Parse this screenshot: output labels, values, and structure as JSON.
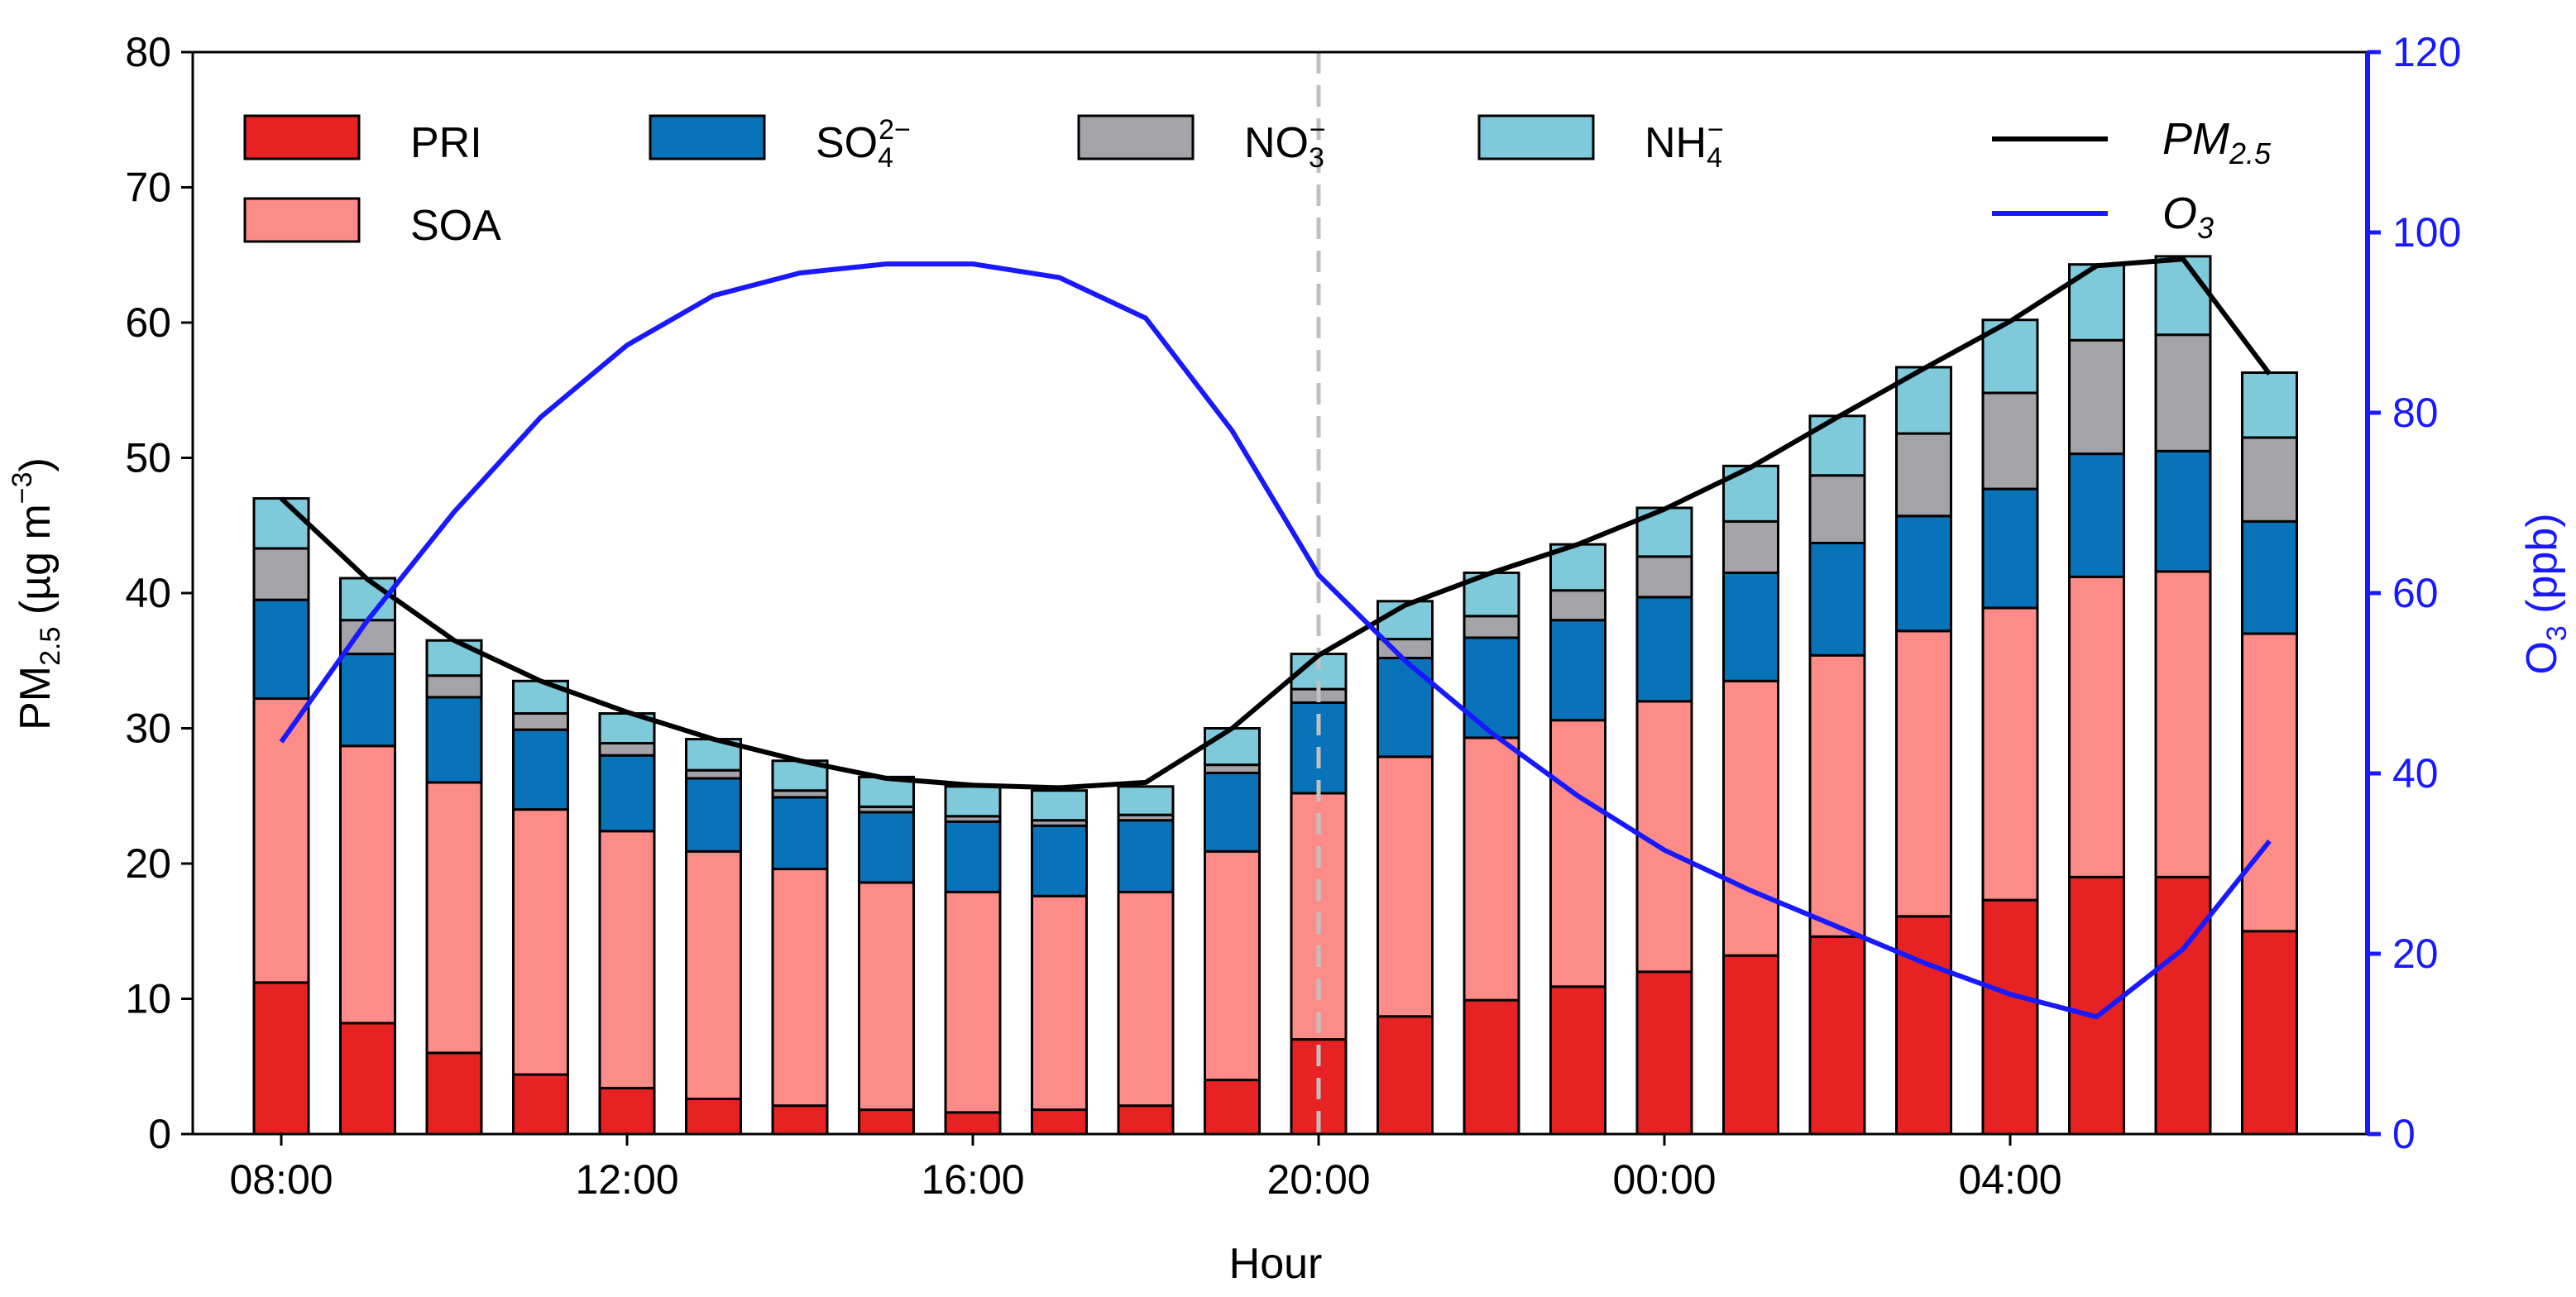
{
  "chart_data": {
    "type": "bar",
    "stacked": true,
    "xlabel": "Hour",
    "ylabel_main": "PM",
    "ylabel_sub": "2.5",
    "ylabel_unit": " (µg m",
    "ylabel_unit_sup": "−3",
    "ylabel_close": ")",
    "y2label_main": "O",
    "y2label_sub": "3",
    "y2label_unit": " (ppb)",
    "ylim": [
      0,
      80
    ],
    "y2lim": [
      0,
      120
    ],
    "yticks": [
      "0",
      "10",
      "20",
      "30",
      "40",
      "50",
      "60",
      "70",
      "80"
    ],
    "y2ticks": [
      "0",
      "20",
      "40",
      "60",
      "80",
      "100",
      "120"
    ],
    "xticks": [
      {
        "index": 0,
        "label": "08:00"
      },
      {
        "index": 4,
        "label": "12:00"
      },
      {
        "index": 8,
        "label": "16:00"
      },
      {
        "index": 12,
        "label": "20:00"
      },
      {
        "index": 16,
        "label": "00:00"
      },
      {
        "index": 20,
        "label": "04:00"
      }
    ],
    "categories": [
      "08:00",
      "09:00",
      "10:00",
      "11:00",
      "12:00",
      "13:00",
      "14:00",
      "15:00",
      "16:00",
      "17:00",
      "18:00",
      "19:00",
      "20:00",
      "21:00",
      "22:00",
      "23:00",
      "00:00",
      "01:00",
      "02:00",
      "03:00",
      "04:00",
      "05:00",
      "06:00",
      "07:00"
    ],
    "vline_index": 12,
    "series": [
      {
        "name": "PRI",
        "color": "#e62222",
        "values": [
          11.2,
          8.2,
          6.0,
          4.4,
          3.4,
          2.6,
          2.1,
          1.8,
          1.6,
          1.8,
          2.1,
          4.0,
          7.0,
          8.7,
          9.9,
          10.9,
          12.0,
          13.2,
          14.6,
          16.1,
          17.3,
          19.0,
          19.0,
          15.0
        ]
      },
      {
        "name": "SOA",
        "color": "#fd8b88",
        "values": [
          21.0,
          20.5,
          20.0,
          19.6,
          19.0,
          18.3,
          17.5,
          16.8,
          16.3,
          15.8,
          15.8,
          16.9,
          18.2,
          19.2,
          19.4,
          19.7,
          20.0,
          20.3,
          20.8,
          21.1,
          21.6,
          22.2,
          22.6,
          22.0
        ]
      },
      {
        "name": "SO",
        "label_sub": "4",
        "label_sup": "2−",
        "color": "#0873b8",
        "values": [
          7.3,
          6.8,
          6.3,
          5.9,
          5.6,
          5.4,
          5.3,
          5.2,
          5.2,
          5.2,
          5.3,
          5.8,
          6.7,
          7.3,
          7.4,
          7.4,
          7.7,
          8.0,
          8.3,
          8.5,
          8.8,
          9.1,
          8.9,
          8.3
        ]
      },
      {
        "name": "NO",
        "label_sub": "3",
        "label_sup": "−",
        "color": "#a3a3a8",
        "values": [
          3.8,
          2.5,
          1.6,
          1.2,
          0.9,
          0.6,
          0.5,
          0.4,
          0.4,
          0.4,
          0.4,
          0.6,
          1.0,
          1.4,
          1.6,
          2.2,
          3.0,
          3.8,
          5.0,
          6.1,
          7.1,
          8.4,
          8.6,
          6.2
        ]
      },
      {
        "name": "NH",
        "label_sub": "4",
        "label_sup": "−",
        "color": "#7ecadb",
        "values": [
          3.7,
          3.1,
          2.6,
          2.4,
          2.2,
          2.3,
          2.2,
          2.2,
          2.2,
          2.2,
          2.1,
          2.7,
          2.6,
          2.8,
          3.2,
          3.4,
          3.6,
          4.1,
          4.4,
          4.9,
          5.4,
          5.6,
          5.8,
          4.8
        ]
      }
    ],
    "lines": [
      {
        "name": "PM",
        "label_sub": "2.5",
        "color": "#000000",
        "axis": "left",
        "values": [
          47.0,
          41.0,
          36.5,
          33.5,
          31.2,
          29.2,
          27.6,
          26.3,
          25.8,
          25.6,
          26.0,
          30.0,
          35.4,
          39.1,
          41.5,
          43.6,
          46.2,
          49.3,
          53.0,
          56.6,
          60.1,
          64.2,
          64.7,
          56.2
        ]
      },
      {
        "name": "O",
        "label_sub": "3",
        "color": "#1919ff",
        "axis": "right",
        "values": [
          43.5,
          57.0,
          69.0,
          79.5,
          87.5,
          93.0,
          95.5,
          96.5,
          96.5,
          95.0,
          90.5,
          78.0,
          62.0,
          52.5,
          44.5,
          37.5,
          31.5,
          27.0,
          23.0,
          19.0,
          15.5,
          13.0,
          20.5,
          32.5
        ]
      }
    ]
  }
}
